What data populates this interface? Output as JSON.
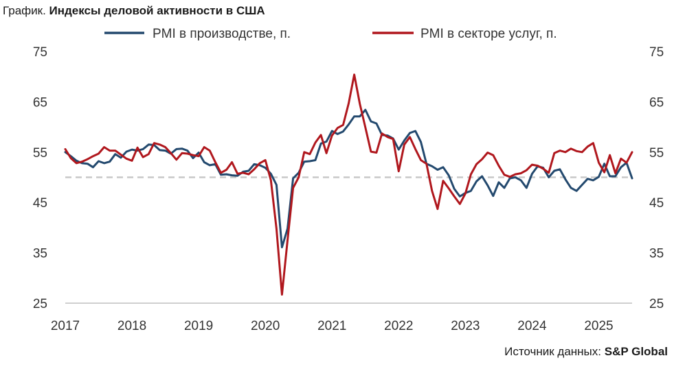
{
  "title": {
    "prefix": "График. ",
    "main": "Индексы деловой активности в США"
  },
  "source": {
    "prefix": "Источник данных: ",
    "name": "S&P Global"
  },
  "chart_data": {
    "type": "line",
    "title": "Индексы деловой активности в США",
    "xlabel": "",
    "ylabel": "",
    "x_ticks": [
      "2017",
      "2018",
      "2019",
      "2020",
      "2021",
      "2022",
      "2023",
      "2024",
      "2025"
    ],
    "x_start": "2017-01",
    "x_step": "month",
    "ylim": [
      25,
      75
    ],
    "y_ticks": [
      25,
      35,
      45,
      55,
      65,
      75
    ],
    "y_axis_both_sides": true,
    "grid": false,
    "legend_placement": "top",
    "reference_line": {
      "value": 50,
      "style": "dashed",
      "color": "#c8c8c8"
    },
    "series": [
      {
        "name": "PMI в производстве, п.",
        "color": "#23496e",
        "values": [
          55.0,
          54.2,
          53.3,
          52.8,
          52.7,
          52.0,
          53.2,
          52.8,
          53.1,
          54.6,
          53.9,
          55.1,
          55.5,
          55.3,
          55.6,
          56.5,
          56.4,
          55.4,
          55.3,
          54.7,
          55.6,
          55.7,
          55.3,
          53.8,
          54.9,
          53.0,
          52.4,
          52.6,
          50.5,
          50.6,
          50.4,
          50.3,
          51.1,
          51.3,
          52.6,
          52.4,
          51.9,
          50.7,
          48.5,
          36.1,
          39.8,
          49.8,
          50.9,
          53.1,
          53.2,
          53.4,
          56.7,
          57.1,
          59.2,
          58.6,
          59.1,
          60.5,
          62.1,
          62.1,
          63.4,
          61.1,
          60.7,
          58.4,
          58.3,
          57.7,
          55.5,
          57.3,
          58.8,
          59.2,
          57.0,
          52.7,
          52.2,
          51.5,
          52.0,
          50.4,
          47.7,
          46.2,
          46.9,
          47.3,
          49.2,
          50.2,
          48.4,
          46.3,
          49.0,
          47.9,
          49.8,
          50.0,
          49.4,
          47.9,
          50.7,
          52.2,
          51.9,
          50.0,
          51.3,
          51.6,
          49.6,
          47.9,
          47.3,
          48.5,
          49.7,
          49.4,
          50.1,
          52.7,
          50.2,
          50.2,
          52.0,
          52.9,
          49.8
        ]
      },
      {
        "name": "PMI в секторе услуг, п.",
        "color": "#b0171d",
        "values": [
          55.6,
          53.8,
          52.8,
          53.1,
          53.6,
          54.2,
          54.7,
          56.0,
          55.3,
          55.3,
          54.5,
          53.7,
          53.3,
          55.9,
          54.0,
          54.6,
          56.8,
          56.5,
          56.0,
          54.8,
          53.5,
          54.8,
          54.7,
          54.4,
          54.2,
          56.0,
          55.3,
          53.0,
          50.9,
          51.5,
          53.0,
          50.7,
          50.9,
          50.6,
          51.6,
          52.8,
          53.4,
          49.4,
          39.8,
          26.7,
          37.5,
          47.9,
          50.0,
          55.0,
          54.6,
          56.9,
          58.4,
          54.8,
          58.3,
          59.8,
          60.4,
          64.7,
          70.4,
          64.6,
          59.9,
          55.1,
          54.9,
          58.7,
          58.0,
          57.6,
          51.2,
          56.5,
          58.0,
          55.6,
          53.4,
          52.7,
          47.3,
          43.7,
          49.3,
          47.8,
          46.2,
          44.7,
          46.8,
          50.6,
          52.6,
          53.6,
          54.9,
          54.4,
          52.3,
          50.5,
          50.1,
          50.6,
          50.8,
          51.4,
          52.5,
          52.3,
          51.7,
          50.9,
          54.8,
          55.3,
          55.0,
          55.7,
          55.2,
          55.0,
          56.1,
          56.8,
          52.9,
          51.0,
          54.4,
          50.8,
          53.7,
          52.9,
          55.0
        ]
      }
    ]
  }
}
